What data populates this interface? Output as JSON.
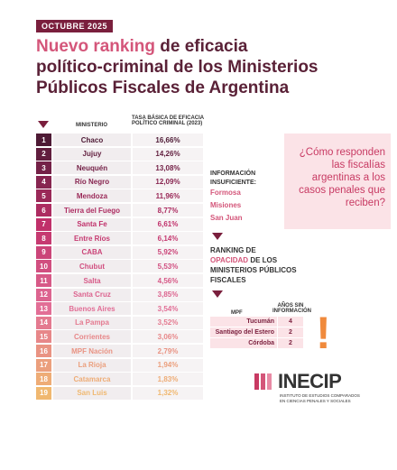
{
  "header": {
    "badge": "OCTUBRE 2025",
    "title_highlight": "Nuevo ranking",
    "title_lines": [
      "de eficacia",
      "político-criminal de los Ministerios",
      "Públicos Fiscales de Argentina"
    ]
  },
  "table": {
    "columns": [
      "MINISTERIO",
      "TASA BÁSICA DE EFICACIA POLÍTICO CRIMINAL (2023)"
    ],
    "rows": [
      [
        1,
        "Chaco",
        "16,66%"
      ],
      [
        2,
        "Jujuy",
        "14,26%"
      ],
      [
        3,
        "Neuquén",
        "13,08%"
      ],
      [
        4,
        "Río Negro",
        "12,09%"
      ],
      [
        5,
        "Mendoza",
        "11,96%"
      ],
      [
        6,
        "Tierra del Fuego",
        "8,77%"
      ],
      [
        7,
        "Santa Fe",
        "6,61%"
      ],
      [
        8,
        "Entre Ríos",
        "6,14%"
      ],
      [
        9,
        "CABA",
        "5,92%"
      ],
      [
        10,
        "Chubut",
        "5,53%"
      ],
      [
        11,
        "Salta",
        "4,56%"
      ],
      [
        12,
        "Santa Cruz",
        "3,85%"
      ],
      [
        13,
        "Buenos Aires",
        "3,54%"
      ],
      [
        14,
        "La Pampa",
        "3,52%"
      ],
      [
        15,
        "Corrientes",
        "3,06%"
      ],
      [
        16,
        "MPF Nación",
        "2,79%"
      ],
      [
        17,
        "La Rioja",
        "1,94%"
      ],
      [
        18,
        "Catamarca",
        "1,83%"
      ],
      [
        19,
        "San Luis",
        "1,32%"
      ]
    ]
  },
  "insufficient": {
    "label": "INFORMACIÓN INSUFICIENTE:",
    "items": [
      "Formosa",
      "Misiones",
      "San Juan"
    ]
  },
  "question": "¿Cómo responden las fiscalías argentinas a los casos penales que reciben?",
  "opacity": {
    "title_pre": "RANKING DE",
    "title_highlight": "OPACIDAD",
    "title_post": "DE LOS MINISTERIOS PÚBLICOS FISCALES",
    "columns": [
      "MPF",
      "AÑOS SIN INFORMACIÓN"
    ],
    "rows": [
      [
        "Tucumán",
        4
      ],
      [
        "Santiago del Estero",
        2
      ],
      [
        "Córdoba",
        2
      ]
    ]
  },
  "logo": {
    "name": "INECIP",
    "subtitle": "INSTITUTO DE ESTUDIOS COMPARADOS EN CIENCIAS PENALES Y SOCIALES"
  }
}
